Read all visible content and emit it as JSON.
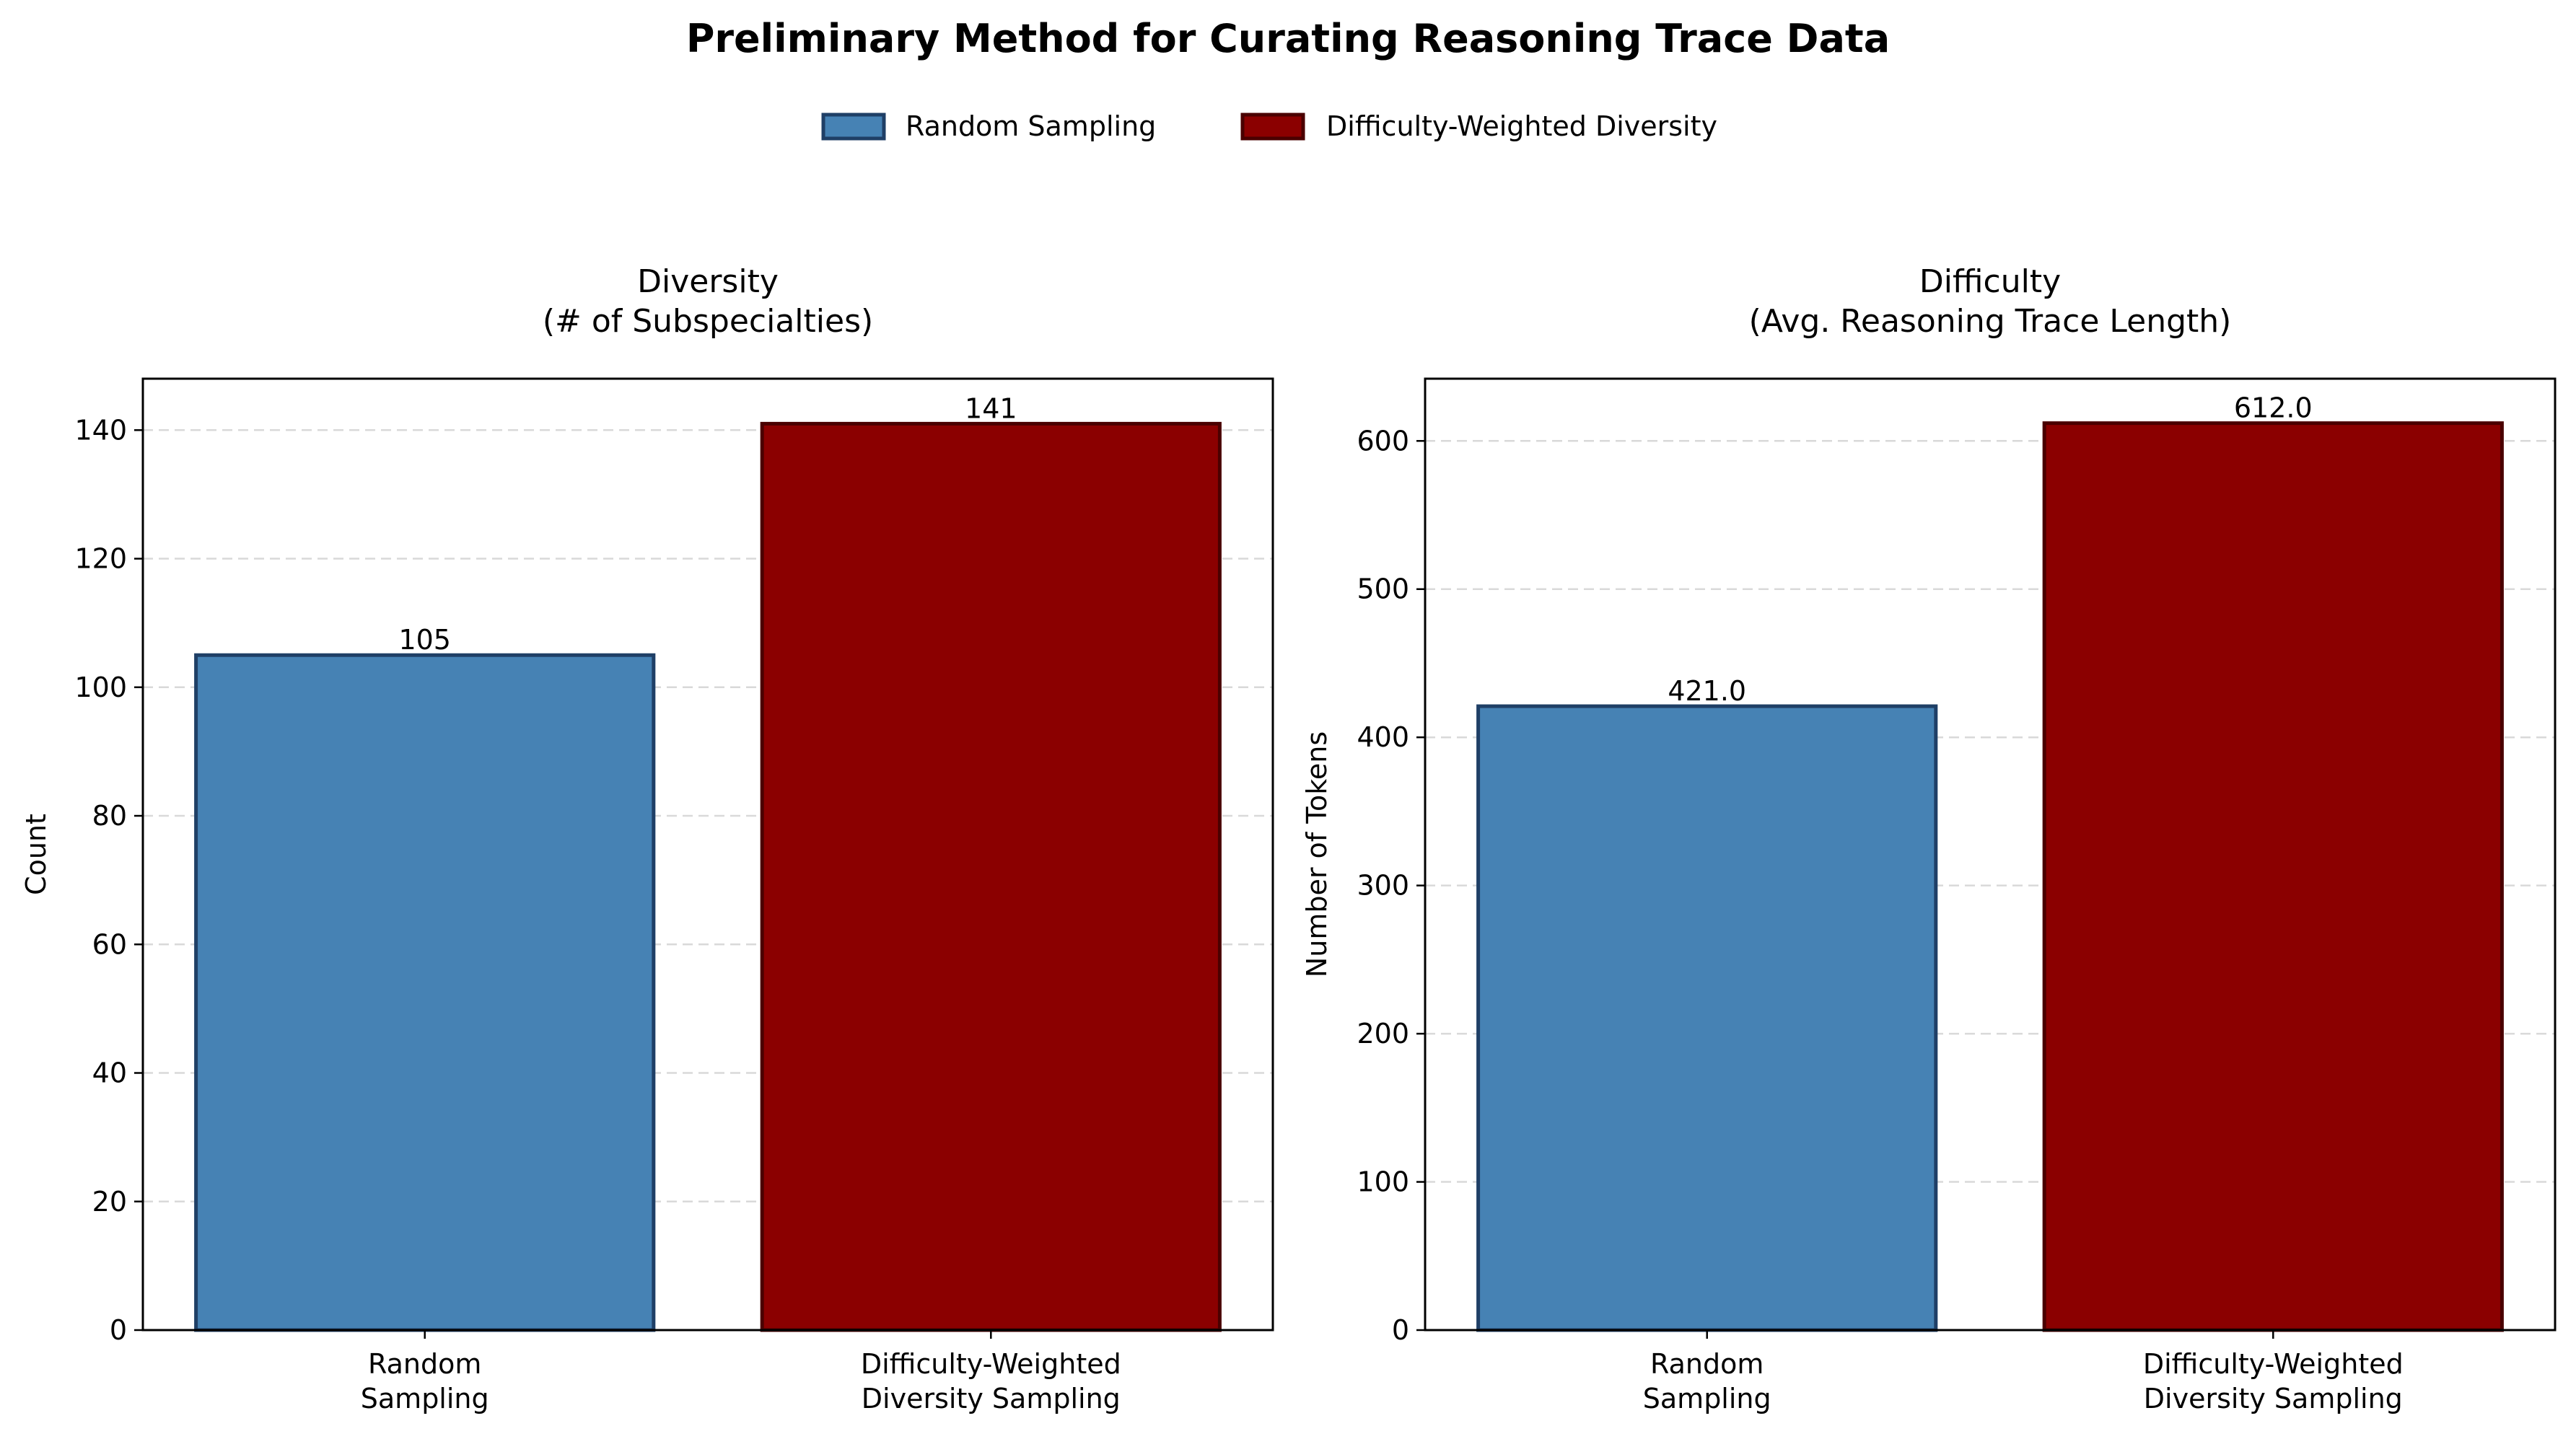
{
  "title": "Preliminary Method for Curating Reasoning Trace Data",
  "legend": [
    {
      "label": "Random Sampling",
      "color": "#4682b4",
      "edge": "#1f3f66"
    },
    {
      "label": "Difficulty-Weighted Diversity",
      "color": "#8b0000",
      "edge": "#4a0000"
    }
  ],
  "chart_data": [
    {
      "type": "bar",
      "title_lines": [
        "Diversity",
        "(# of Subspecialties)"
      ],
      "ylabel": "Count",
      "categories": [
        [
          "Random",
          "Sampling"
        ],
        [
          "Difficulty-Weighted",
          "Diversity Sampling"
        ]
      ],
      "values": [
        105,
        141
      ],
      "value_labels": [
        "105",
        "141"
      ],
      "ylim": [
        0,
        148
      ],
      "yticks": [
        0,
        20,
        40,
        60,
        80,
        100,
        120,
        140
      ],
      "grid": "y-dashed"
    },
    {
      "type": "bar",
      "title_lines": [
        "Difficulty",
        "(Avg. Reasoning Trace Length)"
      ],
      "ylabel": "Number of Tokens",
      "categories": [
        [
          "Random",
          "Sampling"
        ],
        [
          "Difficulty-Weighted",
          "Diversity Sampling"
        ]
      ],
      "values": [
        421.0,
        612.0
      ],
      "value_labels": [
        "421.0",
        "612.0"
      ],
      "ylim": [
        0,
        642
      ],
      "yticks": [
        0,
        100,
        200,
        300,
        400,
        500,
        600
      ],
      "grid": "y-dashed"
    }
  ]
}
